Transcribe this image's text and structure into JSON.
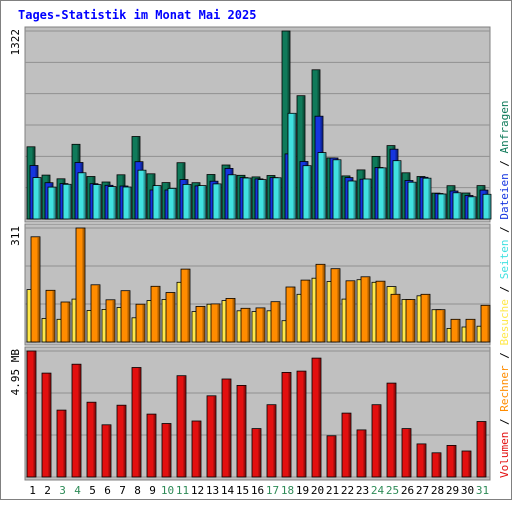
{
  "chart_data": {
    "type": "bar",
    "title": "Tages-Statistik im Monat Mai 2025",
    "categories": [
      "1",
      "2",
      "3",
      "4",
      "5",
      "6",
      "7",
      "8",
      "9",
      "10",
      "11",
      "12",
      "13",
      "14",
      "15",
      "16",
      "17",
      "18",
      "19",
      "20",
      "21",
      "22",
      "23",
      "24",
      "25",
      "26",
      "27",
      "28",
      "29",
      "30",
      "31"
    ],
    "weekend_days": [
      "3",
      "4",
      "10",
      "11",
      "17",
      "18",
      "24",
      "25",
      "31"
    ],
    "panels": [
      {
        "id": "top",
        "max_label": "1322",
        "ymax": 1322,
        "series": [
          {
            "name": "Anfragen",
            "color": "#0f7a5a",
            "values": [
              508,
              309,
              283,
              525,
              299,
              260,
              311,
              580,
              318,
              256,
              396,
              255,
              313,
              380,
              307,
              296,
              306,
              1322,
              867,
              1049,
              430,
              303,
              345,
              440,
              516,
              325,
              299,
              182,
              234,
              183,
              235
            ]
          },
          {
            "name": "Dateien",
            "color": "#1535e0",
            "values": [
              376,
              255,
              249,
              397,
              248,
              237,
              232,
              403,
              204,
              204,
              277,
              233,
              266,
              356,
              291,
              282,
              291,
              458,
              404,
              723,
              429,
              291,
              280,
              362,
              491,
              271,
              293,
              179,
              197,
              165,
              203
            ]
          },
          {
            "name": "Seiten",
            "color": "#40e0e0",
            "values": [
              291,
              224,
              244,
              325,
              242,
              228,
              225,
              343,
              235,
              215,
              243,
              235,
              247,
              311,
              288,
              277,
              290,
              743,
              375,
              467,
              416,
              267,
              281,
              359,
              410,
              259,
              287,
              176,
              184,
              156,
              174
            ]
          }
        ]
      },
      {
        "id": "middle",
        "max_label": "311",
        "ymax": 311,
        "series": [
          {
            "name": "Besuche",
            "color": "#ffe84a",
            "values": [
              143,
              64,
              62,
              117,
              86,
              89,
              94,
              66,
              113,
              116,
              163,
              83,
              103,
              113,
              85,
              83,
              85,
              58,
              130,
              174,
              165,
              117,
              170,
              163,
              151,
              116,
              126,
              88,
              37,
              41,
              43
            ]
          },
          {
            "name": "Rechner",
            "color": "#ff8c00",
            "values": [
              287,
              141,
              109,
              311,
              156,
              115,
              140,
              103,
              152,
              135,
              199,
              97,
              104,
              119,
              92,
              93,
              110,
              150,
              169,
              212,
              200,
              167,
              178,
              166,
              130,
              116,
              130,
              88,
              62,
              62,
              100
            ]
          }
        ]
      },
      {
        "id": "bottom",
        "max_label": "4.95 MB",
        "ymax": 4.95,
        "series": [
          {
            "name": "Volumen",
            "color": "#e31010",
            "values": [
              4.95,
              4.08,
              2.63,
              4.43,
              2.94,
              2.05,
              2.82,
              4.3,
              2.47,
              2.1,
              3.98,
              2.2,
              3.19,
              3.85,
              3.6,
              1.9,
              2.84,
              4.11,
              4.16,
              4.67,
              1.62,
              2.51,
              1.85,
              2.84,
              3.69,
              1.9,
              1.3,
              0.95,
              1.24,
              1.02,
              2.18
            ]
          }
        ]
      }
    ],
    "legend_right": [
      "Volumen",
      "Rechner",
      "Besuche",
      "Seiten",
      "Dateien",
      "Anfragen"
    ],
    "legend_placement": "right-vertical",
    "grid": true
  },
  "colors": {
    "background": "#ffffff",
    "panel": "#c0c0c0",
    "title": "#0000ff",
    "day_label": "#000000",
    "weekend_label": "#2e8b57",
    "separator": "#000000",
    "frame": "#808080"
  }
}
